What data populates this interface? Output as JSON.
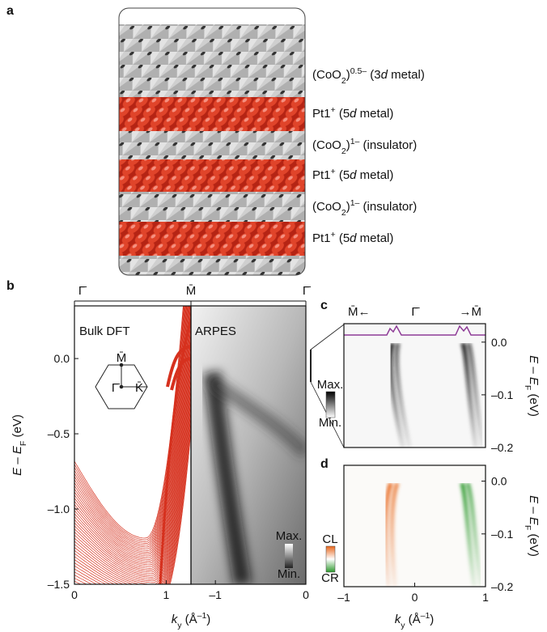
{
  "panel_a": {
    "letter": "a",
    "layers": [
      {
        "color": "#8e3c97",
        "segments": [
          {
            "text": "(CoO"
          },
          {
            "text": "2",
            "style": "sub"
          },
          {
            "text": ")"
          },
          {
            "text": "0.5–",
            "style": "sup"
          },
          {
            "text": " (3"
          },
          {
            "text": "d",
            "style": "italic"
          },
          {
            "text": " metal)"
          }
        ]
      },
      {
        "color": "#d6311e",
        "segments": [
          {
            "text": "Pt1"
          },
          {
            "text": "+",
            "style": "sup"
          },
          {
            "text": " (5"
          },
          {
            "text": "d",
            "style": "italic"
          },
          {
            "text": " metal)"
          }
        ]
      },
      {
        "color": "#a8a8a8",
        "segments": [
          {
            "text": "(CoO"
          },
          {
            "text": "2",
            "style": "sub"
          },
          {
            "text": ")"
          },
          {
            "text": "1–",
            "style": "sup"
          },
          {
            "text": " (insulator)"
          }
        ]
      },
      {
        "color": "#d6311e",
        "segments": [
          {
            "text": "Pt1"
          },
          {
            "text": "+",
            "style": "sup"
          },
          {
            "text": " (5"
          },
          {
            "text": "d",
            "style": "italic"
          },
          {
            "text": " metal)"
          }
        ]
      },
      {
        "color": "#a8a8a8",
        "segments": [
          {
            "text": "(CoO"
          },
          {
            "text": "2",
            "style": "sub"
          },
          {
            "text": ")"
          },
          {
            "text": "1–",
            "style": "sup"
          },
          {
            "text": " (insulator)"
          }
        ]
      },
      {
        "color": "#d6311e",
        "segments": [
          {
            "text": "Pt1"
          },
          {
            "text": "+",
            "style": "sup"
          },
          {
            "text": " (5"
          },
          {
            "text": "d",
            "style": "italic"
          },
          {
            "text": " metal)"
          }
        ]
      }
    ]
  },
  "panel_b": {
    "letter": "b",
    "symmetry_labels": [
      "Γ̄",
      "M̄",
      "Γ̄"
    ],
    "ylabel": [
      {
        "text": "E",
        "style": "italic"
      },
      {
        "text": " – "
      },
      {
        "text": "E",
        "style": "italic"
      },
      {
        "text": "F",
        "style": "sub"
      },
      {
        "text": " (eV)"
      }
    ],
    "xlabel": [
      {
        "text": "k",
        "style": "italic"
      },
      {
        "text": "y",
        "style": "sub"
      },
      {
        "text": " (Å"
      },
      {
        "text": "–1",
        "style": "sup"
      },
      {
        "text": ")"
      }
    ],
    "ylim": [
      -1.5,
      0.35
    ],
    "yticks": [
      {
        "value": 0,
        "label": "0.0"
      },
      {
        "value": -0.5,
        "label": "–0.5"
      },
      {
        "value": -1,
        "label": "–1.0"
      },
      {
        "value": -1.5,
        "label": "–1.5"
      }
    ],
    "dft": {
      "title": "Bulk DFT",
      "color": "#d6311e",
      "xlim": [
        0,
        1.27
      ],
      "xticks": [
        0,
        1
      ]
    },
    "arpes": {
      "title": "ARPES",
      "color": "#8e3c97",
      "xlim": [
        -1.27,
        0
      ],
      "xticks": [
        {
          "value": -1,
          "label": "–1"
        },
        0
      ]
    },
    "bz_labels": [
      "M̄",
      "Γ̄",
      "K̄"
    ],
    "colorbar": [
      "Max.",
      "Min."
    ]
  },
  "panel_c": {
    "letter": "c",
    "symmetry_labels": [
      "M̄←",
      "Γ̄",
      "→M̄"
    ],
    "ylabel": [
      {
        "text": "E",
        "style": "italic"
      },
      {
        "text": " – "
      },
      {
        "text": "E",
        "style": "italic"
      },
      {
        "text": "F",
        "style": "sub"
      },
      {
        "text": " (eV)"
      }
    ],
    "xlim": [
      -1,
      1
    ],
    "ylim": [
      -0.2,
      0.035
    ],
    "yticks": [
      {
        "value": 0,
        "label": "0.0"
      },
      {
        "value": -0.1,
        "label": "–0.1"
      },
      {
        "value": -0.2,
        "label": "–0.2"
      }
    ],
    "colorbar": [
      "Max.",
      "Min."
    ]
  },
  "panel_d": {
    "letter": "d",
    "ylabel": [
      {
        "text": "E",
        "style": "italic"
      },
      {
        "text": " – "
      },
      {
        "text": "E",
        "style": "italic"
      },
      {
        "text": "F",
        "style": "sub"
      },
      {
        "text": " (eV)"
      }
    ],
    "xlabel": [
      {
        "text": "k",
        "style": "italic"
      },
      {
        "text": "y",
        "style": "sub"
      },
      {
        "text": " (Å"
      },
      {
        "text": "–1",
        "style": "sup"
      },
      {
        "text": ")"
      }
    ],
    "xlim": [
      -1,
      1
    ],
    "xticks": [
      {
        "value": -1,
        "label": "–1"
      },
      0,
      1
    ],
    "ylim": [
      -0.2,
      0.03
    ],
    "yticks": [
      {
        "value": 0,
        "label": "0.0"
      },
      {
        "value": -0.1,
        "label": "–0.1"
      },
      {
        "value": -0.2,
        "label": "–0.2"
      }
    ],
    "colorbar": [
      "CL",
      "CR"
    ]
  }
}
